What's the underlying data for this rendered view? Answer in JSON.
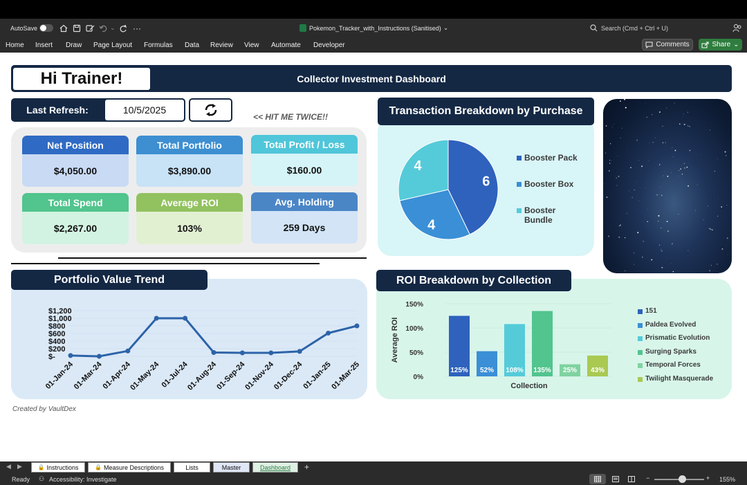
{
  "window": {
    "autosave_label": "AutoSave",
    "file_title": "Pokemon_Tracker_with_Instructions (Sanitised)",
    "search_placeholder": "Search (Cmd + Ctrl + U)"
  },
  "ribbon": {
    "tabs": [
      "Home",
      "Insert",
      "Draw",
      "Page Layout",
      "Formulas",
      "Data",
      "Review",
      "View",
      "Automate",
      "Developer"
    ],
    "comments_label": "Comments",
    "share_label": "Share"
  },
  "dashboard": {
    "greeting": "Hi Trainer!",
    "title": "Collector Investment Dashboard",
    "refresh_label": "Last Refresh:",
    "refresh_date": "10/5/2025",
    "hit_me": "<< HIT ME TWICE!!",
    "credit": "Created by VaultDex"
  },
  "kpis": [
    {
      "label": "Net Position",
      "value": "$4,050.00",
      "head_color": "#2f6bc4",
      "body_color": "#c9daf4"
    },
    {
      "label": "Total Portfolio",
      "value": "$3,890.00",
      "head_color": "#3d8fd1",
      "body_color": "#c8e2f6"
    },
    {
      "label": "Total Profit / Loss",
      "value": "$160.00",
      "head_color": "#4fc6d9",
      "body_color": "#d5f4f8"
    },
    {
      "label": "Total Spend",
      "value": "$2,267.00",
      "head_color": "#52c48e",
      "body_color": "#d3f3e2"
    },
    {
      "label": "Average ROI",
      "value": "103%",
      "head_color": "#92c25f",
      "body_color": "#e2f0d2"
    },
    {
      "label": "Avg. Holding",
      "value": "259 Days",
      "head_color": "#4a86c6",
      "body_color": "#d2e4f6"
    }
  ],
  "charts": {
    "transaction_title": "Transaction Breakdown by Purchase",
    "portfolio_title": "Portfolio Value Trend",
    "roi_title": "ROI Breakdown by Collection"
  },
  "chart_data": [
    {
      "type": "pie",
      "title": "Transaction Breakdown by Purchase",
      "categories": [
        "Booster Pack",
        "Booster Box",
        "Booster Bundle"
      ],
      "values": [
        6,
        4,
        4
      ],
      "colors": [
        "#2e62bd",
        "#3a8fd6",
        "#55cbd9"
      ],
      "legend": "right"
    },
    {
      "type": "line",
      "title": "Portfolio Value Trend",
      "x": [
        "01-Jan-24",
        "01-Mar-24",
        "01-Apr-24",
        "01-May-24",
        "01-Jul-24",
        "01-Aug-24",
        "01-Sep-24",
        "01-Nov-24",
        "01-Dec-24",
        "01-Jan-25",
        "01-Mar-25"
      ],
      "values": [
        20,
        0,
        140,
        1000,
        1000,
        100,
        90,
        90,
        130,
        610,
        800
      ],
      "yticks": [
        "$1,200",
        "$1,000",
        "$800",
        "$600",
        "$400",
        "$200",
        "$-"
      ],
      "ylim": [
        0,
        1200
      ],
      "color": "#2d63a8"
    },
    {
      "type": "bar",
      "title": "ROI Breakdown by Collection",
      "categories": [
        "151",
        "Paldea Evolved",
        "Prismatic Evolution",
        "Surging Sparks",
        "Temporal Forces",
        "Twilight Masquerade"
      ],
      "values": [
        125,
        52,
        108,
        135,
        25,
        43
      ],
      "labels": [
        "125%",
        "52%",
        "108%",
        "135%",
        "25%",
        "43%"
      ],
      "colors": [
        "#2e62bd",
        "#3a8fd6",
        "#55cbd9",
        "#52c48e",
        "#7fd3a0",
        "#a9c952"
      ],
      "xlabel": "Collection",
      "ylabel": "Average ROI",
      "yticks": [
        "150%",
        "100%",
        "50%",
        "0%"
      ],
      "ylim": [
        0,
        150
      ],
      "legend": "right"
    }
  ],
  "sheet_tabs": [
    "Instructions",
    "Measure Descriptions",
    "Lists",
    "Master",
    "Dashboard"
  ],
  "status": {
    "ready": "Ready",
    "accessibility": "Accessibility: Investigate",
    "zoom": "155%"
  }
}
